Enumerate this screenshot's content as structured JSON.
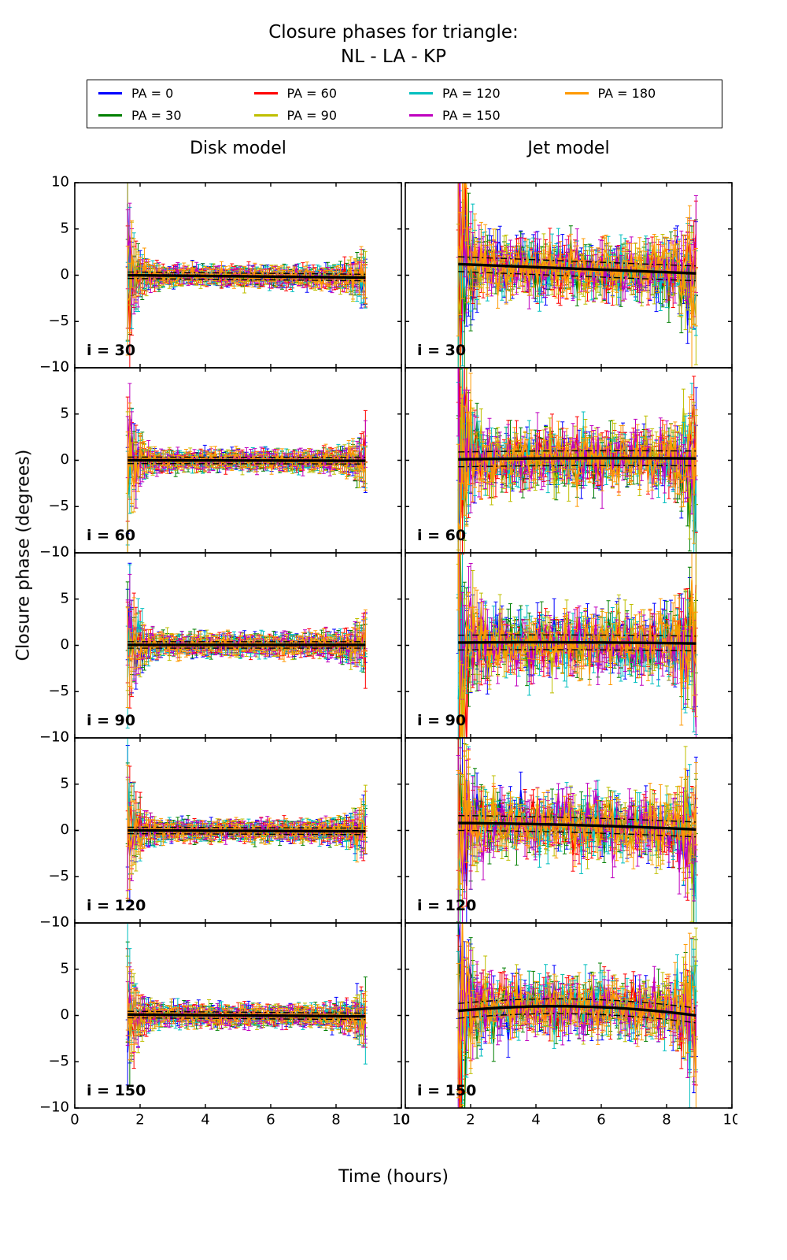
{
  "title": {
    "line1": "Closure phases for triangle:",
    "line2": "NL - LA - KP"
  },
  "chart_data": {
    "type": "line",
    "x_range_hours": [
      1.62,
      8.9
    ],
    "x_axis": {
      "label": "Time (hours)",
      "lim": [
        0,
        10
      ],
      "ticks": [
        0,
        2,
        4,
        6,
        8,
        10
      ],
      "tick_labels": [
        "0",
        "2",
        "4",
        "6",
        "8",
        "10"
      ]
    },
    "y_axis": {
      "label": "Closure phase (degrees)",
      "lim": [
        -10,
        10
      ],
      "ticks": [
        -10,
        -5,
        0,
        5,
        10
      ],
      "tick_labels": [
        "−10",
        "−5",
        "0",
        "5",
        "10"
      ]
    },
    "series": [
      {
        "name": "PA = 0",
        "color": "#0000ff"
      },
      {
        "name": "PA = 30",
        "color": "#007f00"
      },
      {
        "name": "PA = 60",
        "color": "#ff0000"
      },
      {
        "name": "PA = 90",
        "color": "#bfbf00"
      },
      {
        "name": "PA = 120",
        "color": "#00bfbf"
      },
      {
        "name": "PA = 150",
        "color": "#bf00bf"
      },
      {
        "name": "PA = 180",
        "color": "#ff9900"
      }
    ],
    "columns": [
      {
        "label": "Disk model"
      },
      {
        "label": "Jet model"
      }
    ],
    "rows": [
      {
        "label": "i = 30"
      },
      {
        "label": "i = 60"
      },
      {
        "label": "i = 90"
      },
      {
        "label": "i = 120"
      },
      {
        "label": "i = 150"
      }
    ],
    "model_line": {
      "color": "#000000",
      "solid_width": 3.4,
      "dash_offset_disk": 0.35,
      "dash_offset_jet": 0.8
    },
    "panels": [
      {
        "model": "disk",
        "inclination": 30,
        "label": "i = 30",
        "sigma": 0.35,
        "err": 0.75,
        "edge_left": 7.0,
        "edge_right": 2.3,
        "mean": [
          0.0,
          -0.25,
          0.0
        ]
      },
      {
        "model": "jet",
        "inclination": 30,
        "label": "i = 30",
        "sigma": 1.25,
        "err": 1.7,
        "edge_left": 5.0,
        "edge_right": 2.0,
        "mean": [
          1.2,
          -1.0,
          0.0
        ]
      },
      {
        "model": "disk",
        "inclination": 60,
        "label": "i = 60",
        "sigma": 0.35,
        "err": 0.75,
        "edge_left": 7.0,
        "edge_right": 2.3,
        "mean": [
          0.0,
          -0.05,
          0.0
        ]
      },
      {
        "model": "jet",
        "inclination": 60,
        "label": "i = 60",
        "sigma": 1.25,
        "err": 1.7,
        "edge_left": 5.0,
        "edge_right": 2.0,
        "mean": [
          0.1,
          0.4,
          -0.3
        ]
      },
      {
        "model": "disk",
        "inclination": 90,
        "label": "i = 90",
        "sigma": 0.38,
        "err": 0.8,
        "edge_left": 7.0,
        "edge_right": 2.3,
        "mean": [
          0.05,
          0.0,
          0.0
        ]
      },
      {
        "model": "jet",
        "inclination": 90,
        "label": "i = 90",
        "sigma": 1.35,
        "err": 1.8,
        "edge_left": 5.0,
        "edge_right": 2.0,
        "mean": [
          0.3,
          0.2,
          -0.3
        ]
      },
      {
        "model": "disk",
        "inclination": 120,
        "label": "i = 120",
        "sigma": 0.35,
        "err": 0.75,
        "edge_left": 7.0,
        "edge_right": 2.3,
        "mean": [
          0.0,
          -0.1,
          0.0
        ]
      },
      {
        "model": "jet",
        "inclination": 120,
        "label": "i = 120",
        "sigma": 1.3,
        "err": 1.75,
        "edge_left": 5.0,
        "edge_right": 2.0,
        "mean": [
          0.8,
          -0.2,
          -0.5
        ]
      },
      {
        "model": "disk",
        "inclination": 150,
        "label": "i = 150",
        "sigma": 0.35,
        "err": 0.75,
        "edge_left": 7.0,
        "edge_right": 2.3,
        "mean": [
          0.1,
          -0.2,
          0.0
        ]
      },
      {
        "model": "jet",
        "inclination": 150,
        "label": "i = 150",
        "sigma": 1.25,
        "err": 1.7,
        "edge_left": 5.0,
        "edge_right": 2.0,
        "mean": [
          0.5,
          2.4,
          -2.9
        ]
      }
    ]
  }
}
